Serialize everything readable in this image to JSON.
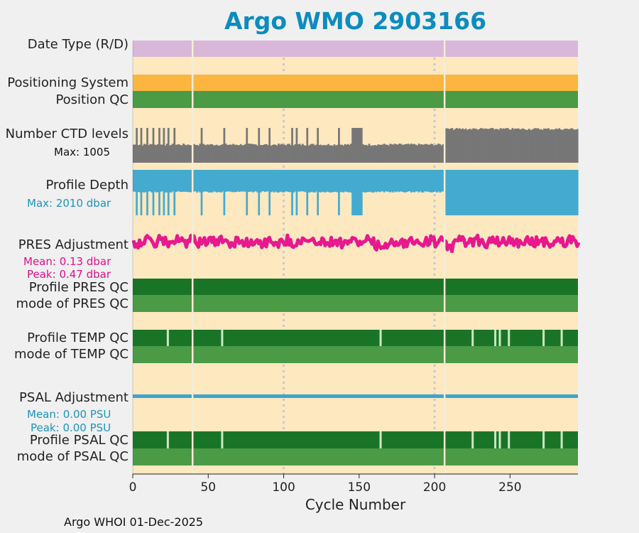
{
  "page_title": "Argo WMO 2903166",
  "footer": "Argo WHOI 01-Dec-2025",
  "colors": {
    "background": "#fde8c0",
    "date_type": "#d9b7d9",
    "positioning": "#fbb540",
    "qc_good": "#4a9a46",
    "qc_profile_a": "#1a7428",
    "ctd_levels": "#777777",
    "profile_depth": "#44aacf",
    "pres_adjustment": "#e8188e",
    "psal_adjustment": "#3aa6d0",
    "gap_line": "#f5eed5",
    "grid": "#c8c8d0"
  },
  "rows": {
    "date_type": {
      "label": "Date Type (R/D)"
    },
    "positioning_system": {
      "label": "Positioning System"
    },
    "position_qc": {
      "label": "Position QC"
    },
    "ctd_levels": {
      "label": "Number CTD levels",
      "max_text": "Max: 1005"
    },
    "profile_depth": {
      "label": "Profile Depth",
      "max_text": "Max: 2010 dbar"
    },
    "pres_adjustment": {
      "label": "PRES Adjustment",
      "mean_text": "Mean: 0.13 dbar",
      "peak_text": "Peak: 0.47 dbar"
    },
    "profile_pres_qc": {
      "label": "Profile PRES QC"
    },
    "mode_pres_qc": {
      "label": "mode of PRES QC"
    },
    "profile_temp_qc": {
      "label": "Profile TEMP QC"
    },
    "mode_temp_qc": {
      "label": "mode of TEMP QC"
    },
    "psal_adjustment": {
      "label": "PSAL Adjustment",
      "mean_text": "Mean: 0.00 PSU",
      "peak_text": "Peak: 0.00 PSU"
    },
    "profile_psal_qc": {
      "label": "Profile PSAL QC"
    },
    "mode_psal_qc": {
      "label": "mode of PSAL QC"
    }
  },
  "chart_data": {
    "type": "bar",
    "title": "Argo WMO 2903166",
    "xlabel": "Cycle Number",
    "xlim": [
      0,
      295
    ],
    "xticks": [
      0,
      50,
      100,
      150,
      200,
      250
    ],
    "grid_x": [
      100,
      200
    ],
    "missing_cycles": [
      39,
      206
    ],
    "ctd_levels_max": 1005,
    "profile_depth_max_dbar": 2010,
    "pres_adjustment_mean_dbar": 0.13,
    "pres_adjustment_peak_dbar": 0.47,
    "psal_adjustment_mean_psu": 0.0,
    "psal_adjustment_peak_psu": 0.0,
    "temp_qc_flagged_cycles": [
      23,
      59,
      164,
      225,
      240,
      243,
      249,
      272,
      284
    ],
    "psal_qc_flagged_cycles": [
      23,
      59,
      164,
      225,
      240,
      243,
      249,
      272,
      284
    ]
  }
}
